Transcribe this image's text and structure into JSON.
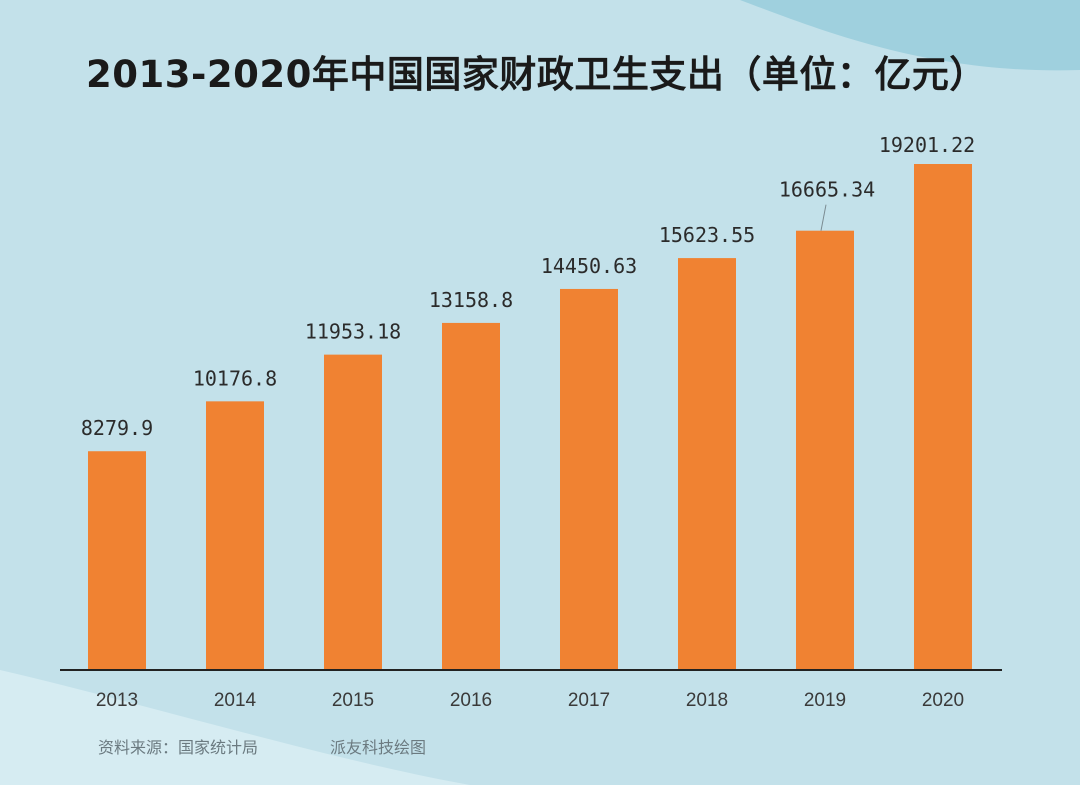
{
  "colors": {
    "background": "#c3e1ea",
    "accent_wave": "#9fd0de",
    "light_wave": "#d6ecf2",
    "bar": "#f08232",
    "axis": "#222222"
  },
  "footer": {
    "source": "资料来源：国家统计局",
    "credit": "派友科技绘图"
  },
  "chart_data": {
    "type": "bar",
    "title": "2013-2020年中国国家财政卫生支出（单位：亿元）",
    "categories": [
      "2013",
      "2014",
      "2015",
      "2016",
      "2017",
      "2018",
      "2019",
      "2020"
    ],
    "values": [
      8279.9,
      10176.8,
      11953.18,
      13158.8,
      14450.63,
      15623.55,
      16665.34,
      19201.22
    ],
    "value_labels": [
      "8279.9",
      "10176.8",
      "11953.18",
      "13158.8",
      "14450.63",
      "15623.55",
      "16665.34",
      "19201.22"
    ],
    "xlabel": "",
    "ylabel": "",
    "ylim": [
      0,
      20000
    ],
    "grid": false,
    "legend": "none"
  }
}
